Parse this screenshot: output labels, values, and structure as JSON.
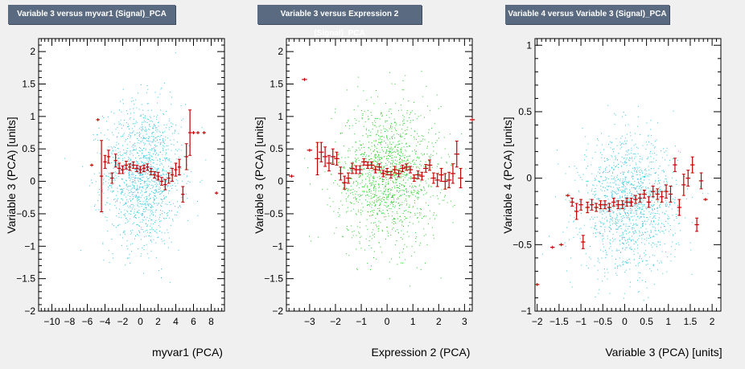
{
  "colors": {
    "background": "#f0f0f0",
    "frame": "#ffffff",
    "title_bg": "#5a6a80",
    "title_text": "#ffffff",
    "profile": "#c00000"
  },
  "chart_data": [
    {
      "type": "scatter",
      "title": "Variable 3 versus myvar1 (Signal)_PCA",
      "xlabel": "myvar1 (PCA)",
      "ylabel": "Variable 3 (PCA)  [units]",
      "xlim": [
        -11.5,
        9.5
      ],
      "ylim": [
        -2.0,
        2.2
      ],
      "xticks": [
        -10,
        -8,
        -6,
        -4,
        -2,
        0,
        2,
        4,
        6,
        8
      ],
      "yticks": [
        -2,
        -1.5,
        -1,
        -0.5,
        0,
        0.5,
        1,
        1.5,
        2
      ],
      "scatter_color": "#33c6dd",
      "scatter": {
        "mean_x": 0.3,
        "sd_x": 2.2,
        "mean_y": 0.1,
        "sd_y": 0.55,
        "n": 1400
      },
      "profile": {
        "x": [
          -5.5,
          -4.8,
          -4.4,
          -4.0,
          -3.6,
          -3.2,
          -2.8,
          -2.4,
          -2.0,
          -1.6,
          -1.2,
          -0.8,
          -0.4,
          0.0,
          0.4,
          0.8,
          1.2,
          1.6,
          2.0,
          2.4,
          2.8,
          3.2,
          3.6,
          4.0,
          4.4,
          4.8,
          5.2,
          5.6,
          6.0,
          6.5,
          7.2,
          8.6
        ],
        "y": [
          0.25,
          0.95,
          0.08,
          0.3,
          0.38,
          0.05,
          0.32,
          0.2,
          0.18,
          0.25,
          0.22,
          0.25,
          0.2,
          0.18,
          0.2,
          0.22,
          0.15,
          0.1,
          0.08,
          0.0,
          -0.05,
          0.05,
          0.1,
          0.18,
          0.22,
          -0.2,
          0.38,
          0.75,
          0.75,
          0.75,
          0.75,
          -0.18
        ],
        "err": [
          0.0,
          0.0,
          0.55,
          0.1,
          0.1,
          0.08,
          0.1,
          0.08,
          0.06,
          0.06,
          0.05,
          0.05,
          0.05,
          0.05,
          0.05,
          0.05,
          0.05,
          0.05,
          0.06,
          0.06,
          0.08,
          0.08,
          0.1,
          0.1,
          0.12,
          0.12,
          0.2,
          0.35,
          0.0,
          0.0,
          0.0,
          0.0
        ]
      }
    },
    {
      "type": "scatter",
      "title": "Variable 3 versus Expression 2 (Signal)_PCA",
      "xlabel": "Expression 2 (PCA)",
      "ylabel": "Variable 3 (PCA)  [units]",
      "xlim": [
        -3.9,
        3.3
      ],
      "ylim": [
        -2.0,
        2.2
      ],
      "xticks": [
        -3,
        -2,
        -1,
        0,
        1,
        2,
        3
      ],
      "yticks": [
        -2,
        -1.5,
        -1,
        -0.5,
        0,
        0.5,
        1,
        1.5,
        2
      ],
      "scatter_color": "#22cc22",
      "scatter": {
        "mean_x": 0.0,
        "sd_x": 1.0,
        "mean_y": 0.1,
        "sd_y": 0.55,
        "n": 1400
      },
      "profile": {
        "x": [
          -3.7,
          -3.2,
          -3.0,
          -2.7,
          -2.55,
          -2.4,
          -2.25,
          -2.1,
          -1.95,
          -1.8,
          -1.65,
          -1.5,
          -1.35,
          -1.2,
          -1.05,
          -0.9,
          -0.75,
          -0.6,
          -0.45,
          -0.3,
          -0.15,
          0.0,
          0.15,
          0.3,
          0.45,
          0.6,
          0.75,
          0.9,
          1.05,
          1.2,
          1.35,
          1.5,
          1.65,
          1.8,
          1.95,
          2.1,
          2.25,
          2.4,
          2.55,
          2.7,
          2.85,
          3.3
        ],
        "y": [
          0.08,
          1.57,
          0.48,
          0.35,
          0.45,
          0.38,
          0.28,
          0.38,
          0.35,
          0.12,
          -0.02,
          0.05,
          0.2,
          0.18,
          0.18,
          0.3,
          0.25,
          0.25,
          0.18,
          0.22,
          0.12,
          0.15,
          0.1,
          0.18,
          0.12,
          0.2,
          0.22,
          0.18,
          0.05,
          0.1,
          0.08,
          0.2,
          0.25,
          0.05,
          0.02,
          0.1,
          0.0,
          0.02,
          0.12,
          0.42,
          0.05,
          0.95
        ],
        "err": [
          0.0,
          0.0,
          0.0,
          0.25,
          0.15,
          0.15,
          0.12,
          0.12,
          0.1,
          0.1,
          0.1,
          0.08,
          0.08,
          0.06,
          0.06,
          0.05,
          0.05,
          0.05,
          0.05,
          0.05,
          0.05,
          0.05,
          0.05,
          0.05,
          0.05,
          0.05,
          0.05,
          0.05,
          0.05,
          0.06,
          0.06,
          0.06,
          0.08,
          0.08,
          0.1,
          0.1,
          0.12,
          0.12,
          0.15,
          0.2,
          0.15,
          0.0
        ]
      }
    },
    {
      "type": "scatter",
      "title": "Variable 4 versus Variable 3 (Signal)_PCA",
      "xlabel": "Variable 3 (PCA)  [units]",
      "ylabel": "Variable 4 (PCA)  [units]",
      "xlim": [
        -2.05,
        2.2
      ],
      "ylim": [
        -1.0,
        1.05
      ],
      "xticks": [
        -2,
        -1.5,
        -1,
        -0.5,
        0,
        0.5,
        1,
        1.5,
        2
      ],
      "yticks": [
        -1,
        -0.5,
        0,
        0.5,
        1
      ],
      "scatter_color": "#33c6dd",
      "scatter": {
        "mean_x": 0.1,
        "sd_x": 0.55,
        "mean_y": -0.2,
        "sd_y": 0.25,
        "n": 1400
      },
      "profile": {
        "x": [
          -2.0,
          -1.65,
          -1.45,
          -1.3,
          -1.2,
          -1.1,
          -1.0,
          -0.95,
          -0.85,
          -0.75,
          -0.65,
          -0.55,
          -0.45,
          -0.35,
          -0.25,
          -0.15,
          -0.05,
          0.05,
          0.15,
          0.25,
          0.35,
          0.45,
          0.55,
          0.65,
          0.75,
          0.85,
          0.95,
          1.05,
          1.15,
          1.25,
          1.35,
          1.45,
          1.55,
          1.65,
          1.75,
          1.85
        ],
        "y": [
          -0.8,
          -0.52,
          -0.5,
          -0.13,
          -0.18,
          -0.25,
          -0.2,
          -0.48,
          -0.22,
          -0.2,
          -0.22,
          -0.2,
          -0.2,
          -0.22,
          -0.18,
          -0.2,
          -0.2,
          -0.18,
          -0.18,
          -0.16,
          -0.15,
          -0.12,
          -0.18,
          -0.1,
          -0.12,
          -0.14,
          -0.1,
          -0.12,
          0.1,
          -0.22,
          -0.05,
          0.0,
          0.1,
          -0.35,
          -0.02,
          -0.16
        ],
        "err": [
          0.0,
          0.0,
          0.0,
          0.0,
          0.03,
          0.06,
          0.04,
          0.05,
          0.04,
          0.04,
          0.03,
          0.03,
          0.03,
          0.03,
          0.03,
          0.03,
          0.03,
          0.03,
          0.03,
          0.03,
          0.03,
          0.03,
          0.04,
          0.04,
          0.04,
          0.04,
          0.05,
          0.06,
          0.05,
          0.06,
          0.08,
          0.06,
          0.06,
          0.05,
          0.06,
          0.0
        ]
      }
    }
  ]
}
